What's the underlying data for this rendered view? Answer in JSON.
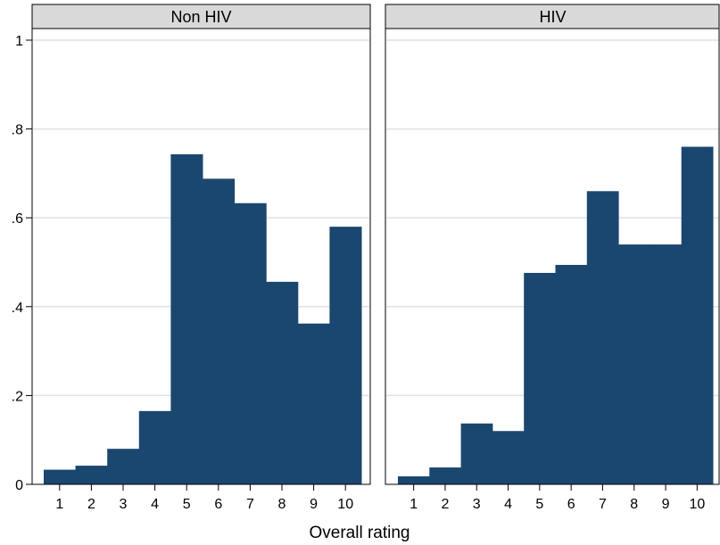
{
  "chart_data": {
    "type": "bar",
    "xlabel": "Overall rating",
    "ylabel": "",
    "ylim": [
      0,
      1
    ],
    "yticks": [
      0,
      0.2,
      0.4,
      0.6,
      0.8,
      1
    ],
    "ytick_labels": [
      "0",
      ".2",
      ".4",
      ".6",
      ".8",
      "1"
    ],
    "categories": [
      "1",
      "2",
      "3",
      "4",
      "5",
      "6",
      "7",
      "8",
      "9",
      "10"
    ],
    "grid": true,
    "bar_color": "#1a476f",
    "strip_color": "#d9d9d9",
    "panels": [
      {
        "label": "Non HIV",
        "values": [
          0.033,
          0.042,
          0.08,
          0.165,
          0.743,
          0.688,
          0.633,
          0.456,
          0.362,
          0.58
        ]
      },
      {
        "label": "HIV",
        "values": [
          0.018,
          0.038,
          0.137,
          0.12,
          0.476,
          0.494,
          0.66,
          0.54,
          0.54,
          0.76
        ]
      }
    ]
  }
}
